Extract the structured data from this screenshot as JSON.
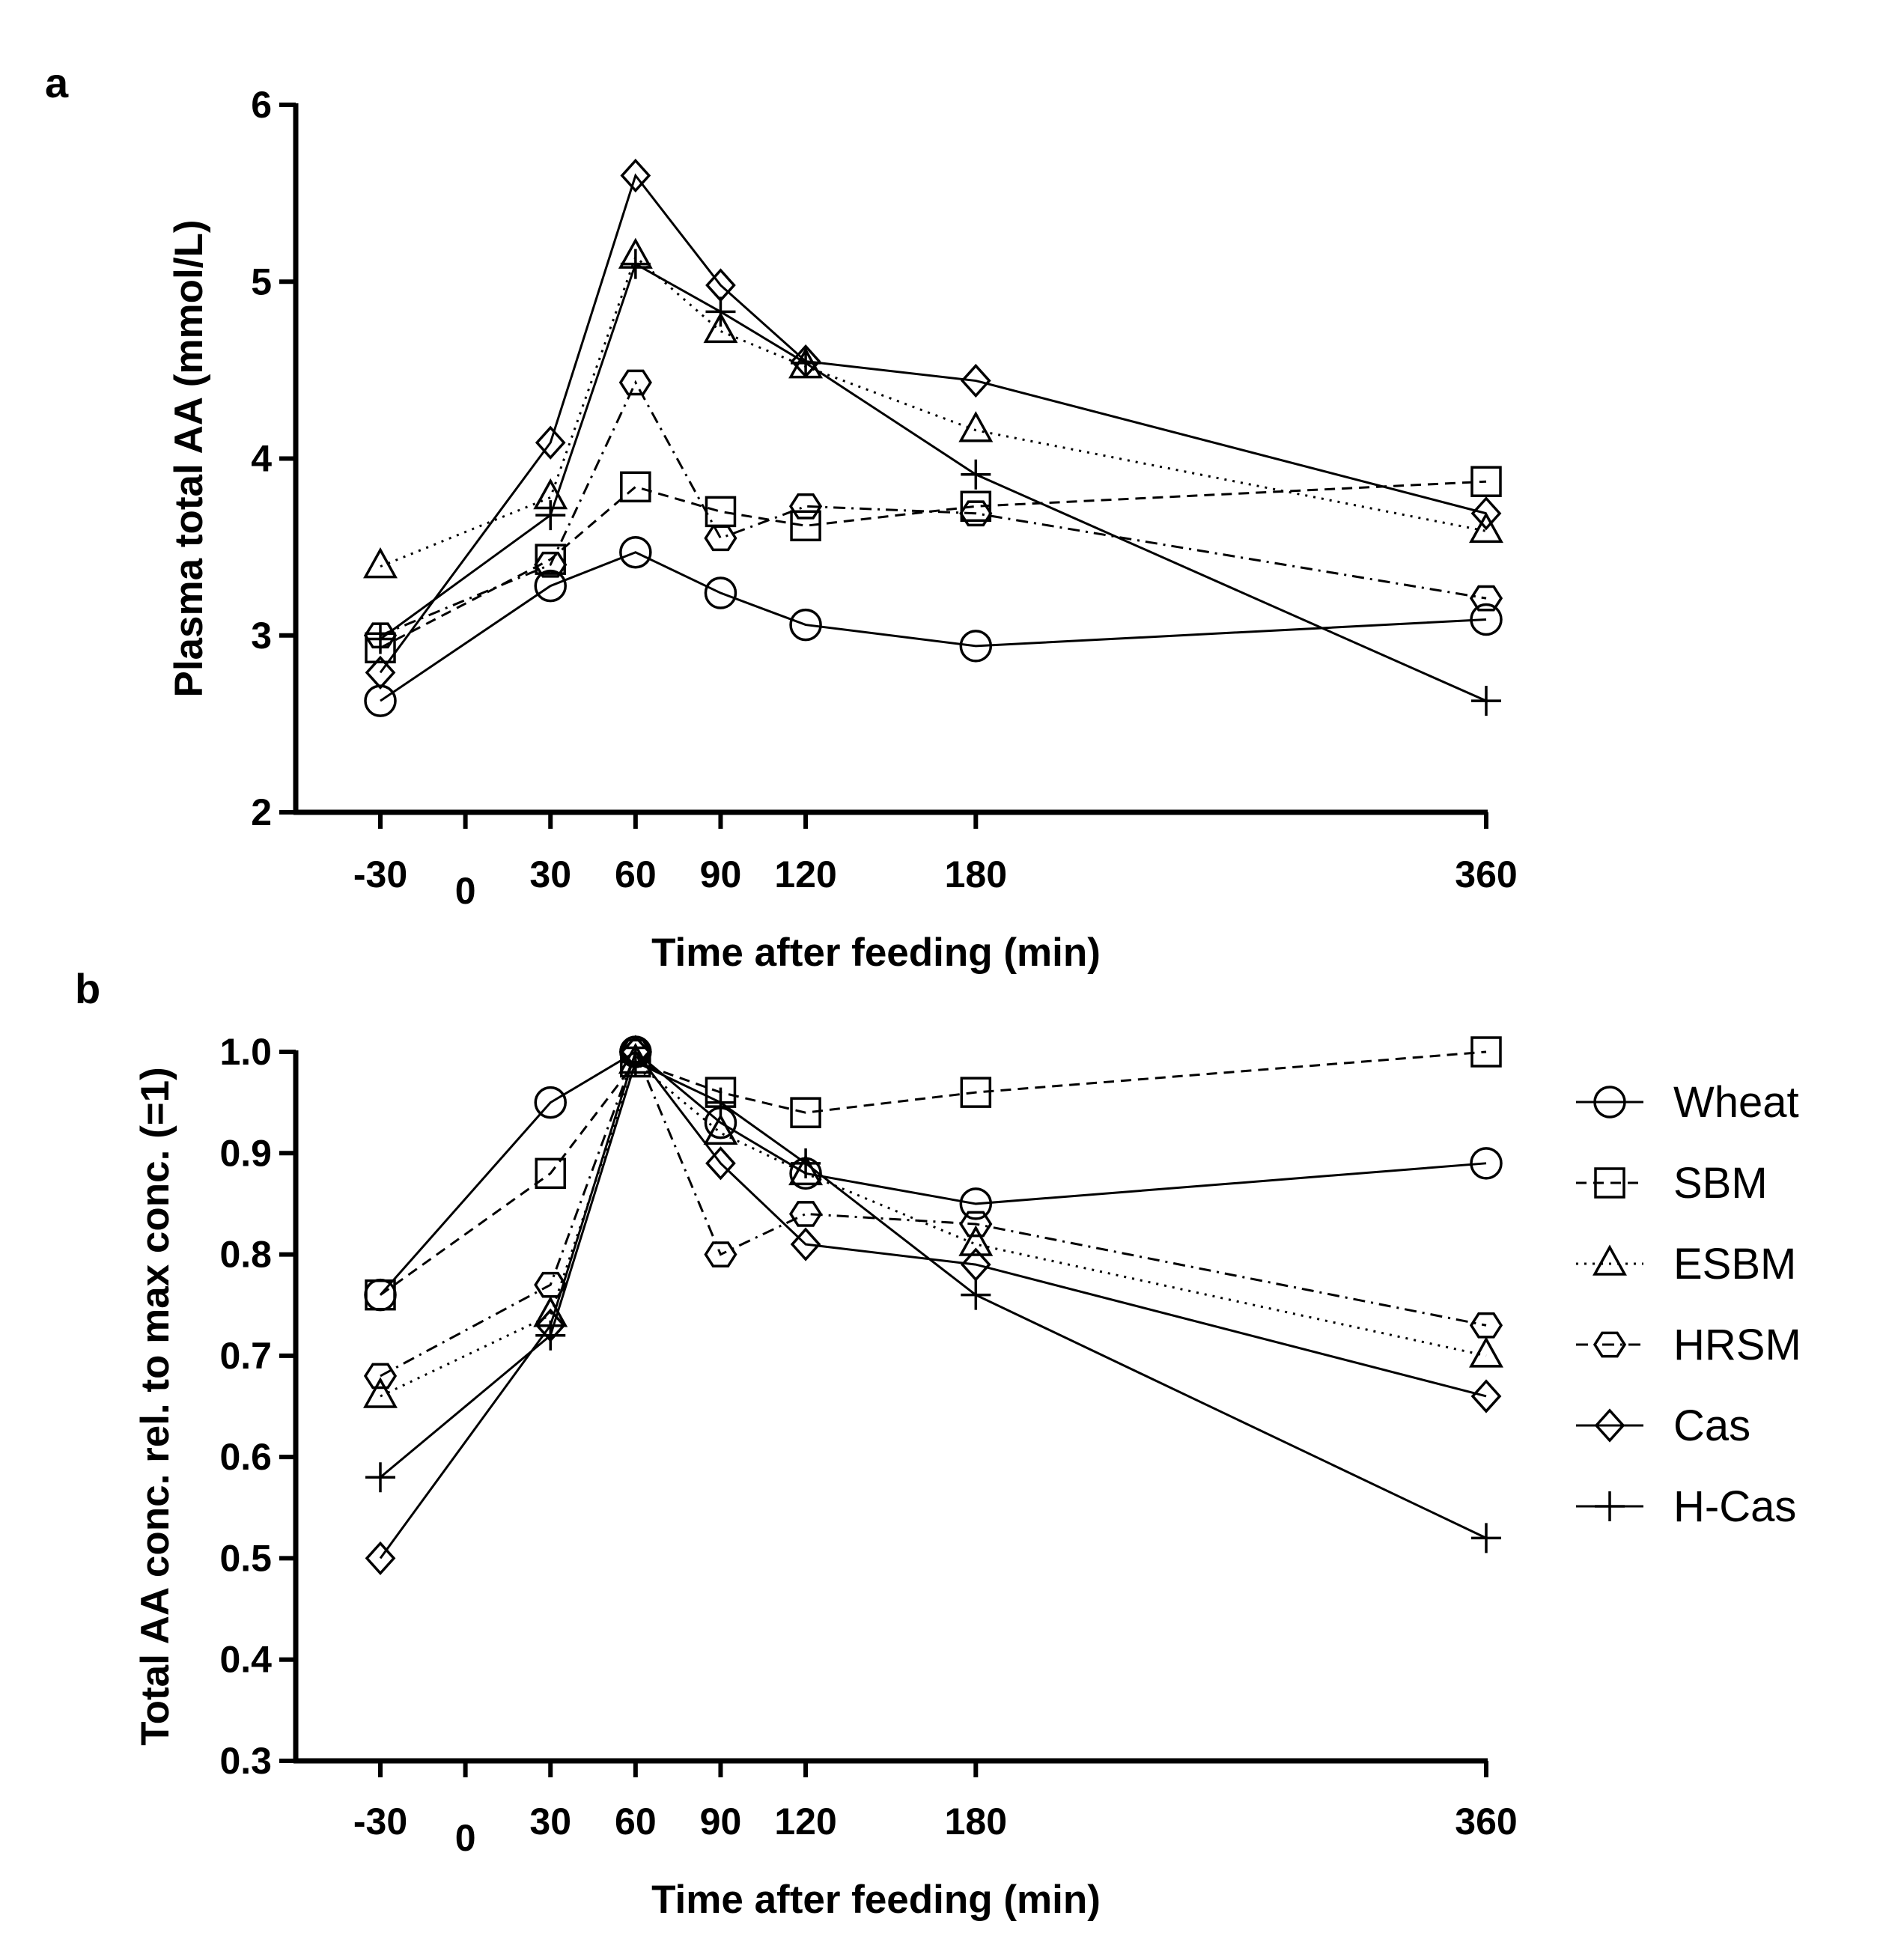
{
  "figure": {
    "panel_labels": [
      "a",
      "b"
    ]
  },
  "series_styles": [
    {
      "name": "Wheat",
      "marker": "circle-icon",
      "dash": "solid"
    },
    {
      "name": "SBM",
      "marker": "square-icon",
      "dash": "dashed"
    },
    {
      "name": "ESBM",
      "marker": "triangle-icon",
      "dash": "dotted"
    },
    {
      "name": "HRSM",
      "marker": "hexagon-icon",
      "dash": "dash-dot"
    },
    {
      "name": "Cas",
      "marker": "diamond-icon",
      "dash": "solid"
    },
    {
      "name": "H-Cas",
      "marker": "plus-icon",
      "dash": "solid"
    }
  ],
  "colors": {
    "ink": "#000000",
    "background": "#ffffff"
  },
  "chart_data": [
    {
      "type": "line",
      "panel": "a",
      "title": "",
      "xlabel": "Time after feeding (min)",
      "ylabel": "Plasma total AA (mmol/L)",
      "x": [
        -30,
        30,
        60,
        90,
        120,
        180,
        360
      ],
      "xticks": [
        -30,
        0,
        30,
        60,
        90,
        120,
        180,
        360
      ],
      "xtick_labels": [
        "-30",
        "0",
        "30",
        "60",
        "90",
        "120",
        "180",
        "360"
      ],
      "yticks": [
        2,
        3,
        4,
        5,
        6
      ],
      "ytick_labels": [
        "2",
        "3",
        "4",
        "5",
        "6"
      ],
      "ylim": [
        2,
        6
      ],
      "grid": false,
      "series": [
        {
          "name": "Wheat",
          "values": [
            2.63,
            3.28,
            3.47,
            3.24,
            3.06,
            2.94,
            3.09
          ]
        },
        {
          "name": "SBM",
          "values": [
            2.93,
            3.43,
            3.84,
            3.7,
            3.62,
            3.73,
            3.87
          ]
        },
        {
          "name": "ESBM",
          "values": [
            3.39,
            3.78,
            5.14,
            4.72,
            4.52,
            4.16,
            3.59
          ]
        },
        {
          "name": "HRSM",
          "values": [
            3.0,
            3.4,
            4.43,
            3.55,
            3.73,
            3.69,
            3.21
          ]
        },
        {
          "name": "Cas",
          "values": [
            2.79,
            4.09,
            5.6,
            4.98,
            4.55,
            4.44,
            3.69
          ]
        },
        {
          "name": "H-Cas",
          "values": [
            2.98,
            3.68,
            5.1,
            4.83,
            4.54,
            3.91,
            2.63
          ]
        }
      ]
    },
    {
      "type": "line",
      "panel": "b",
      "title": "",
      "xlabel": "Time after feeding (min)",
      "ylabel": "Total AA conc. rel. to max conc. (=1)",
      "x": [
        -30,
        30,
        60,
        90,
        120,
        180,
        360
      ],
      "xticks": [
        -30,
        0,
        30,
        60,
        90,
        120,
        180,
        360
      ],
      "xtick_labels": [
        "-30",
        "0",
        "30",
        "60",
        "90",
        "120",
        "180",
        "360"
      ],
      "yticks": [
        0.3,
        0.4,
        0.5,
        0.6,
        0.7,
        0.8,
        0.9,
        1.0
      ],
      "ytick_labels": [
        "0.3",
        "0.4",
        "0.5",
        "0.6",
        "0.7",
        "0.8",
        "0.9",
        "1.0"
      ],
      "ylim": [
        0.3,
        1.0
      ],
      "grid": false,
      "legend": "right",
      "series": [
        {
          "name": "Wheat",
          "values": [
            0.76,
            0.95,
            1.0,
            0.93,
            0.88,
            0.85,
            0.89
          ]
        },
        {
          "name": "SBM",
          "values": [
            0.76,
            0.88,
            0.99,
            0.96,
            0.94,
            0.96,
            1.0
          ]
        },
        {
          "name": "ESBM",
          "values": [
            0.66,
            0.74,
            0.99,
            0.92,
            0.88,
            0.81,
            0.7
          ]
        },
        {
          "name": "HRSM",
          "values": [
            0.68,
            0.77,
            1.0,
            0.8,
            0.84,
            0.83,
            0.73
          ]
        },
        {
          "name": "Cas",
          "values": [
            0.5,
            0.73,
            1.0,
            0.89,
            0.81,
            0.79,
            0.66
          ]
        },
        {
          "name": "H-Cas",
          "values": [
            0.58,
            0.72,
            0.99,
            0.95,
            0.89,
            0.76,
            0.52
          ]
        }
      ]
    }
  ]
}
